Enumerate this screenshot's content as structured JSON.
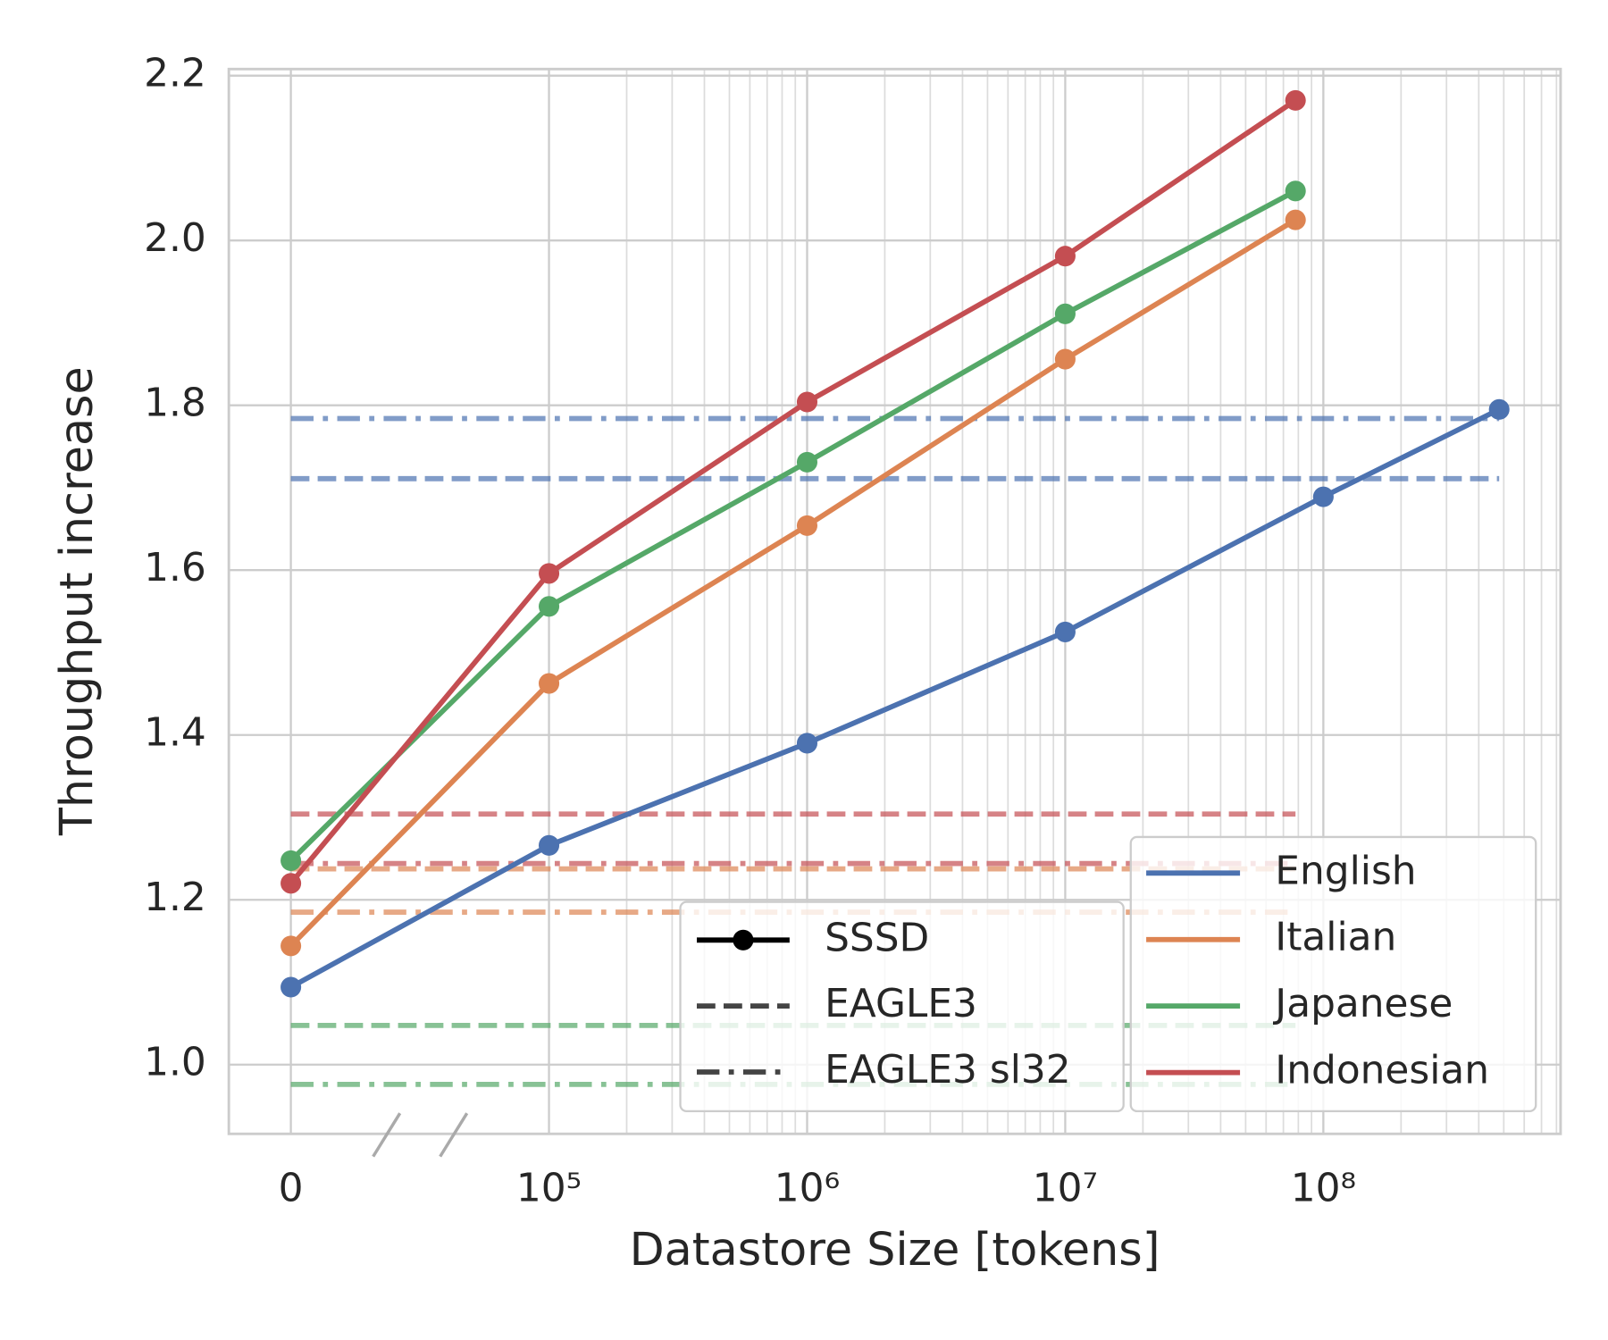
{
  "chart_data": {
    "type": "line",
    "xlabel": "Datastore Size [tokens]",
    "ylabel": "Throughput increase",
    "xscale": "log",
    "axis_break": true,
    "grid": true,
    "legend_loc": "lower right",
    "xlim": [
      5750,
      830000000
    ],
    "ylim": [
      0.916,
      2.208
    ],
    "xticks": [
      0,
      {
        "value": 100000,
        "label": "10⁵"
      },
      {
        "value": 1000000,
        "label": "10⁶"
      },
      {
        "value": 10000000,
        "label": "10⁷"
      },
      {
        "value": 100000000,
        "label": "10⁸"
      }
    ],
    "yticks": [
      {
        "value": 1,
        "label": "1.0"
      },
      1.2,
      1.4,
      1.6,
      1.8,
      {
        "value": 2,
        "label": "2.0"
      },
      2.2
    ],
    "styles": [
      {
        "name": "SSSD",
        "linestyle": "solid",
        "marker": true
      },
      {
        "name": "EAGLE3",
        "linestyle": "dashed",
        "marker": false
      },
      {
        "name": "EAGLE3 sl32",
        "linestyle": "dashdot",
        "marker": false
      }
    ],
    "series": [
      {
        "name": "English",
        "color": "#4c72b0",
        "x": [
          0,
          100000,
          1000000,
          10000000,
          100000000,
          480000000
        ],
        "values": [
          1.094,
          1.266,
          1.39,
          1.525,
          1.689,
          1.795
        ],
        "eagle3": 1.711,
        "eagle3_sl32": 1.784
      },
      {
        "name": "Italian",
        "color": "#dd8452",
        "x": [
          0,
          100000,
          1000000,
          10000000,
          78000000
        ],
        "values": [
          1.144,
          1.4625,
          1.654,
          1.856,
          2.025
        ],
        "eagle3": 1.2375,
        "eagle3_sl32": 1.185
      },
      {
        "name": "Japanese",
        "color": "#55a868",
        "x": [
          0,
          100000,
          1000000,
          10000000,
          78000000
        ],
        "values": [
          1.2475,
          1.556,
          1.731,
          1.911,
          2.06
        ],
        "eagle3": 1.0475,
        "eagle3_sl32": 0.976
      },
      {
        "name": "Indonesian",
        "color": "#c44e52",
        "x": [
          0,
          100000,
          1000000,
          10000000,
          78000000
        ],
        "values": [
          1.22,
          1.596,
          1.804,
          1.981,
          2.17
        ],
        "eagle3": 1.304,
        "eagle3_sl32": 1.244
      }
    ]
  }
}
